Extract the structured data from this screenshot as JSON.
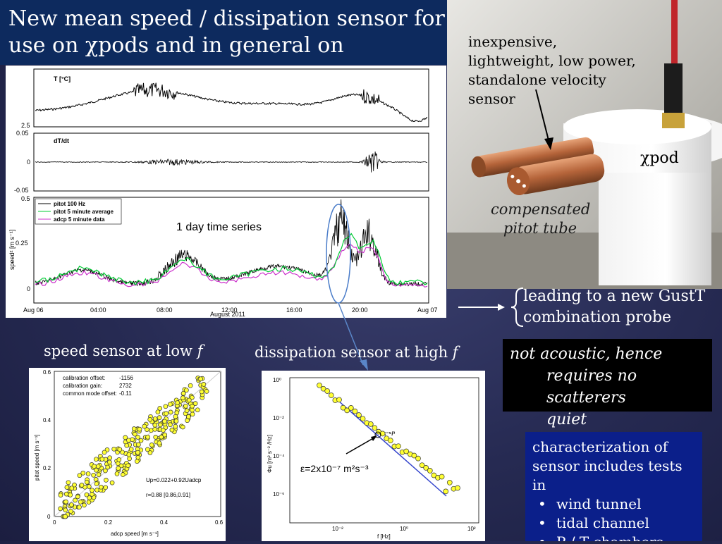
{
  "slide": {
    "title": "New mean speed / dissipation sensor for use on χpods and in general on",
    "photo_callouts": {
      "sensor_desc": "inexpensive, lightweight, low power, standalone velocity sensor",
      "chipod": "χpod",
      "pitot_line1": "compensated",
      "pitot_line2": "pitot tube"
    },
    "gust": {
      "line1": "leading to a new GustT",
      "line2": "combination probe"
    },
    "speed_label": "speed sensor at low",
    "speed_label_f": "f",
    "dissipation_label": "dissipation sensor at high",
    "dissipation_label_f": "f",
    "black_box": {
      "line1": "not acoustic, hence",
      "line2": "requires no scatterers",
      "line3": "quiet"
    },
    "blue_box": {
      "intro": "characterization of sensor includes tests in",
      "items": [
        "wind tunnel",
        "tidal channel",
        "P / T chambers"
      ]
    },
    "colors": {
      "title_bg": "#0d2a5e",
      "blue_box": "#0b1f8a",
      "pitot_green": "#00cc33",
      "adcp_magenta": "#cc33cc",
      "scatter_yellow": "#ffff33"
    }
  },
  "chart_data": [
    {
      "type": "line",
      "title": "1 day time series",
      "panels": [
        {
          "ylabel": "T [°C]",
          "yticks": [
            "2.5"
          ]
        },
        {
          "ylabel": "dT/dt",
          "yticks": [
            "0.05",
            "0",
            "-0.05"
          ]
        },
        {
          "ylabel": "speed² [m s⁻¹]",
          "yticks": [
            "0.5",
            "0.25",
            "0"
          ]
        }
      ],
      "series": [
        {
          "name": "pitot 100 Hz",
          "color": "#000000"
        },
        {
          "name": "pitot 5 minute average",
          "color": "#00cc33"
        },
        {
          "name": "adcp 5 minute data",
          "color": "#cc33cc"
        }
      ],
      "xticks": [
        "Aug 06",
        "04:00",
        "08:00",
        "12:00",
        "16:00",
        "20:00",
        "Aug 07"
      ],
      "xlabel": "August 2011"
    },
    {
      "type": "scatter",
      "xlabel": "adcp speed [m s⁻¹]",
      "ylabel": "pitot speed [m s⁻¹]",
      "xlim": [
        0,
        0.6
      ],
      "ylim": [
        0,
        0.6
      ],
      "xticks": [
        "0",
        "0.2",
        "0.4",
        "0.6"
      ],
      "yticks": [
        "0",
        "0.2",
        "0.4",
        "0.6"
      ],
      "annotations": {
        "cal_offset_label": "calibration offset:",
        "cal_offset_val": "-1156",
        "cal_gain_label": "calibration gain:",
        "cal_gain_val": "2732",
        "common_label": "common mode offset:",
        "common_val": "-0.11",
        "fit": "Up=0.022+0.92Uadcp",
        "r": "r=0.88 [0.86,0.91]"
      }
    },
    {
      "type": "scatter",
      "xlabel": "f [Hz]",
      "ylabel": "Φu [m² s⁻² /Hz]",
      "scale": "log",
      "xticks": [
        "10⁻²",
        "10⁰",
        "10²"
      ],
      "yticks": [
        "10⁰",
        "10⁻²",
        "10⁻⁴",
        "10⁻⁶"
      ],
      "slope_label": "k⁻⁵/³",
      "epsilon_label": "ε=2x10⁻⁷ m²s⁻³"
    }
  ]
}
